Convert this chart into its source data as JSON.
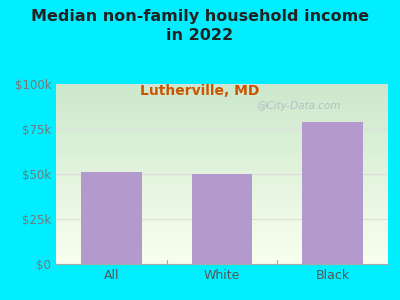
{
  "title": "Median non-family household income\nin 2022",
  "subtitle": "Lutherville, MD",
  "categories": [
    "All",
    "White",
    "Black"
  ],
  "values": [
    51000,
    50000,
    79000
  ],
  "bar_color": "#b399cc",
  "title_fontsize": 11.5,
  "subtitle_fontsize": 10,
  "subtitle_color": "#cc5500",
  "title_color": "#222222",
  "background_color": "#00eeff",
  "plot_bg_color_topleft": "#cce8cc",
  "plot_bg_color_bottomright": "#f0f8e8",
  "ylim": [
    0,
    100000
  ],
  "yticks": [
    0,
    25000,
    50000,
    75000,
    100000
  ],
  "ytick_labels": [
    "$0",
    "$25k",
    "$50k",
    "$75k",
    "$100k"
  ],
  "watermark": "@City-Data.com",
  "tick_label_color": "#777777",
  "axis_label_color": "#555555",
  "grid_color": "#dddddd"
}
